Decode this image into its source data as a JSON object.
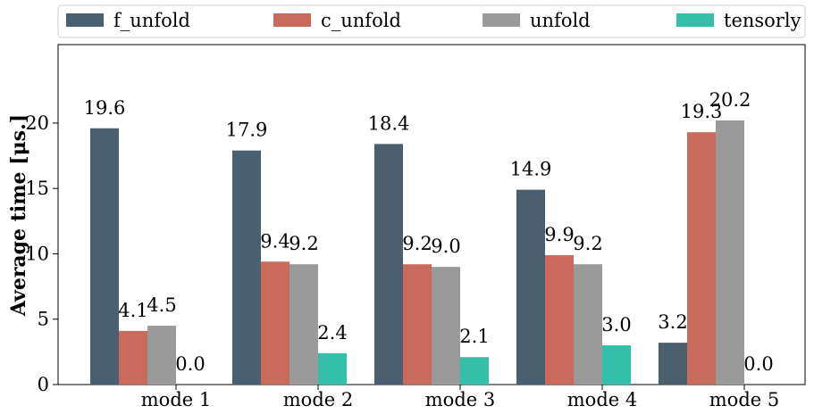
{
  "chart_data": {
    "type": "bar",
    "categories": [
      "mode 1",
      "mode 2",
      "mode 3",
      "mode 4",
      "mode 5"
    ],
    "series": [
      {
        "name": "f_unfold",
        "color": "#4a6070",
        "values": [
          19.6,
          17.9,
          18.4,
          14.9,
          3.2
        ]
      },
      {
        "name": "c_unfold",
        "color": "#c96b5c",
        "values": [
          4.1,
          9.4,
          9.2,
          9.9,
          19.3
        ]
      },
      {
        "name": "unfold",
        "color": "#9a9a9a",
        "values": [
          4.5,
          9.2,
          9.0,
          9.2,
          20.2
        ]
      },
      {
        "name": "tensorly",
        "color": "#34bfa9",
        "values": [
          0.0,
          2.4,
          2.1,
          3.0,
          0.0
        ]
      }
    ],
    "data_labels": [
      [
        "19.6",
        "17.9",
        "18.4",
        "14.9",
        "3.2"
      ],
      [
        "4.1",
        "9.4",
        "9.2",
        "9.9",
        "19.3"
      ],
      [
        "4.5",
        "9.2",
        "9.0",
        "9.2",
        "20.2"
      ],
      [
        "0.0",
        "2.4",
        "2.1",
        "3.0",
        "0.0"
      ]
    ],
    "ylabel": "Average time [μs.]",
    "xlabel": "",
    "ylim": [
      0,
      26
    ],
    "yticks": [
      0,
      5,
      10,
      15,
      20
    ],
    "grid": false,
    "legend": "top, horizontal, outside plot"
  }
}
